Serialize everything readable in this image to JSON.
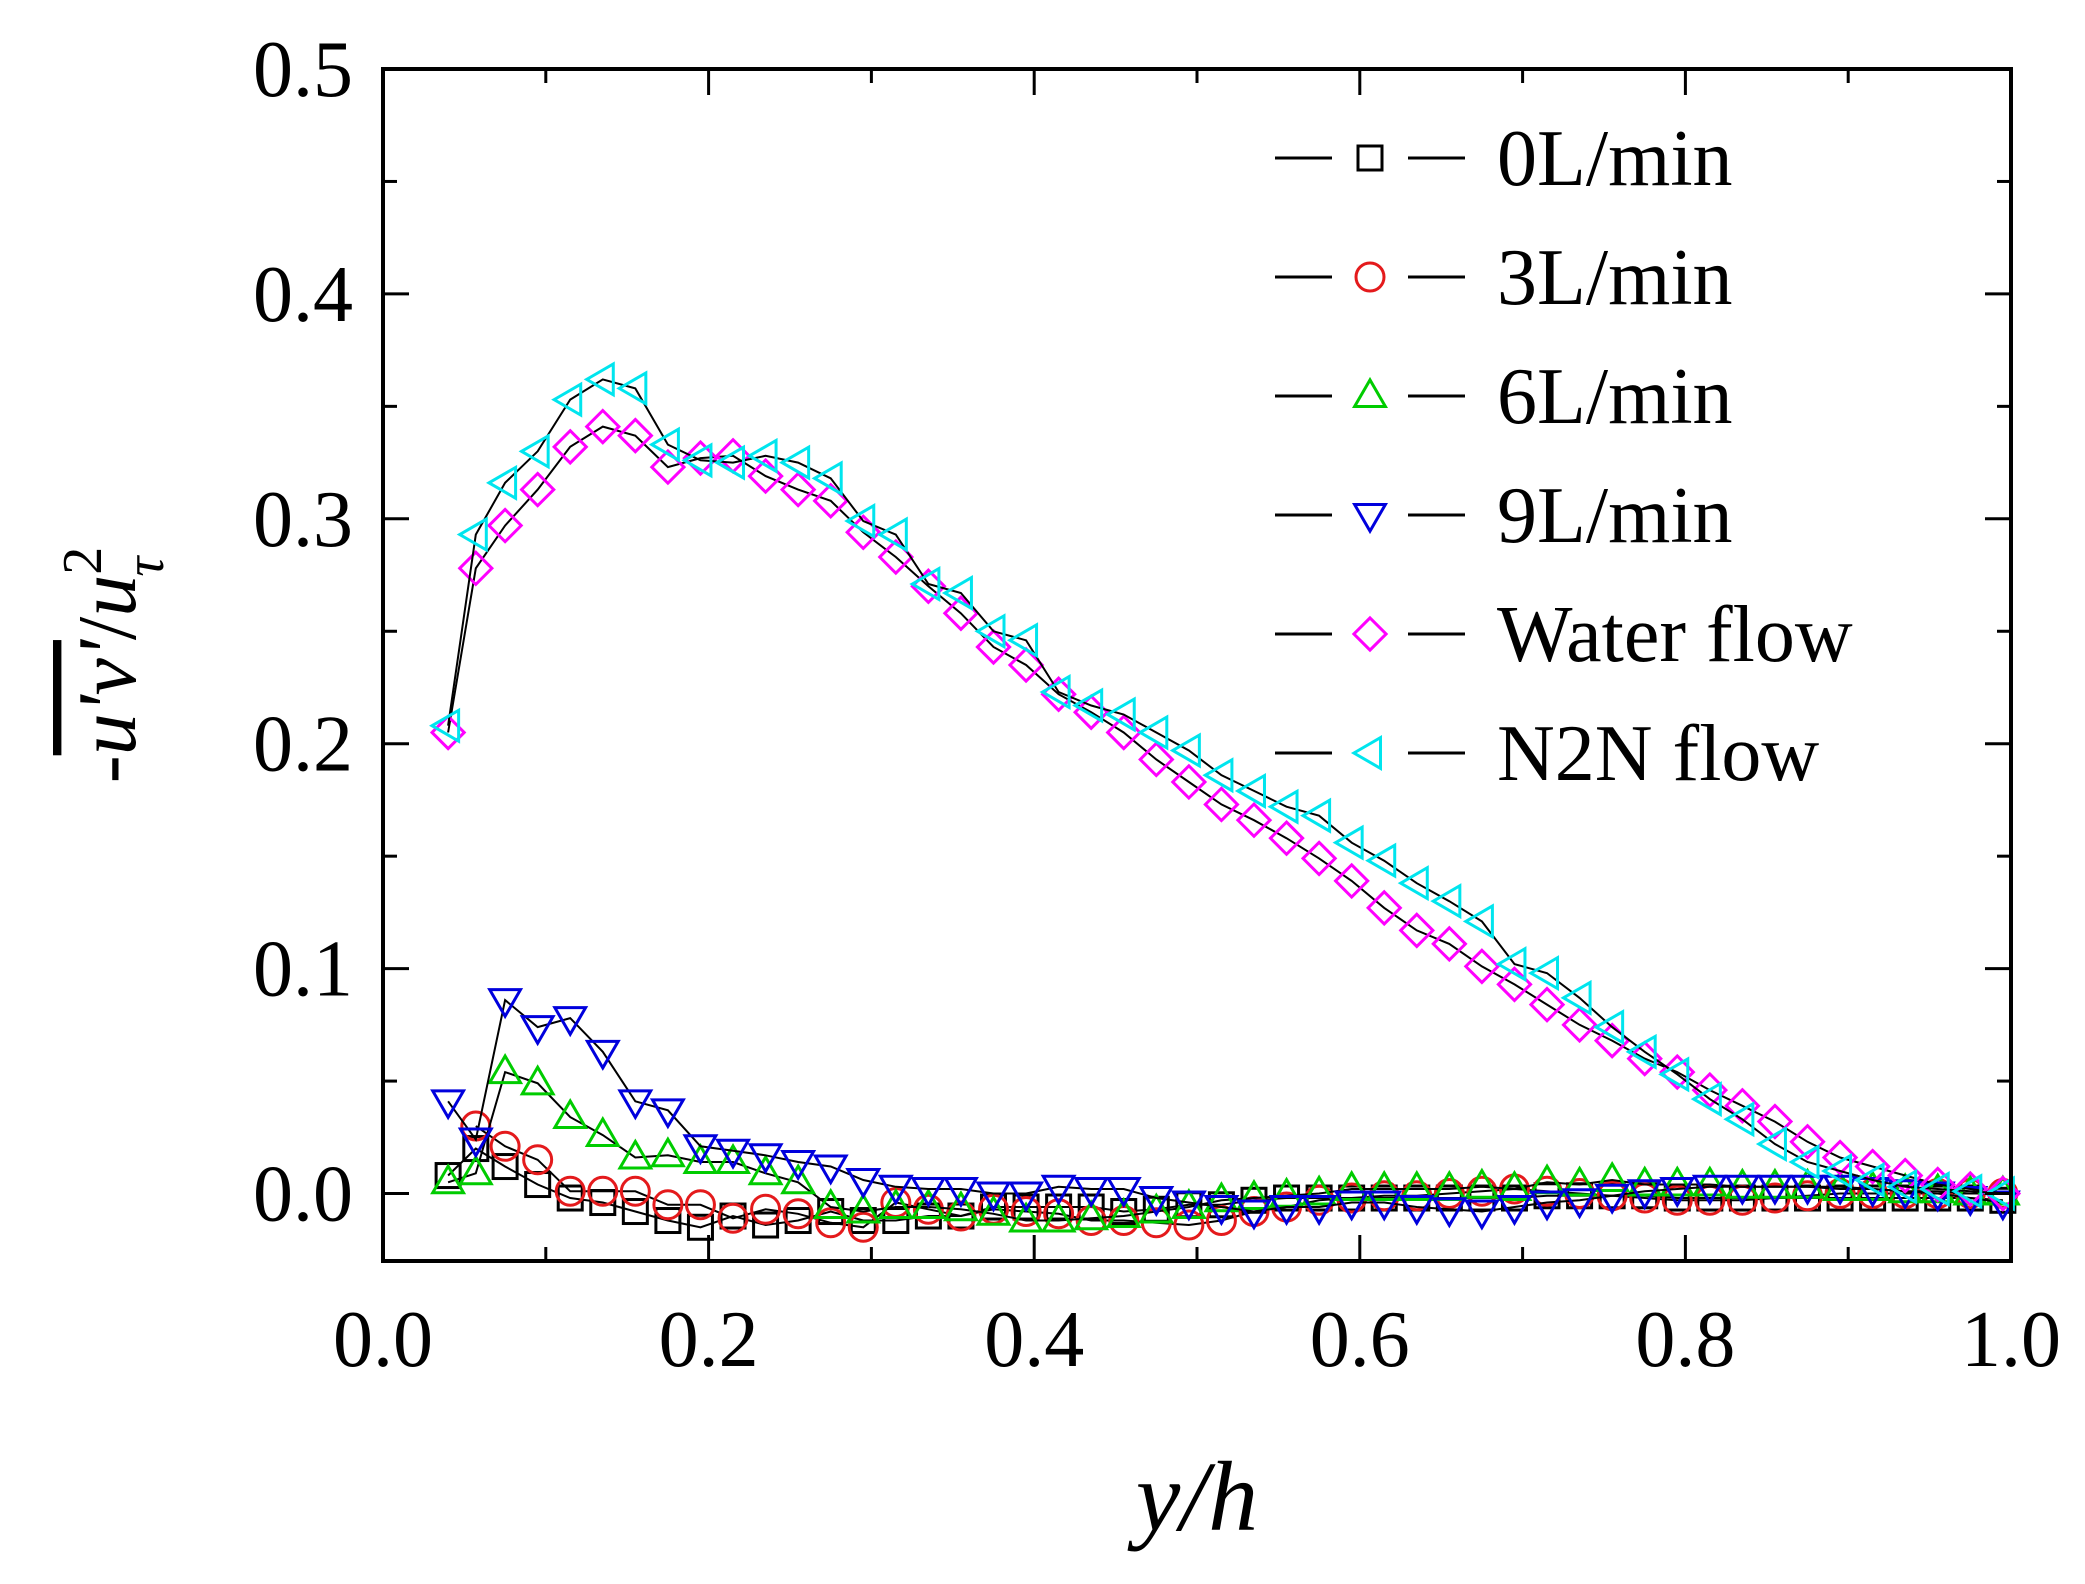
{
  "chart_data": {
    "type": "line",
    "xlabel": "y/h",
    "ylabel": {
      "prefix": "-",
      "overline": "u'v'",
      "slash": "/",
      "base": "u",
      "superscript": "2",
      "subscript": "τ"
    },
    "xlim": [
      0,
      1.0
    ],
    "ylim": [
      -0.03,
      0.5
    ],
    "xticks": [
      "0.0",
      "0.2",
      "0.4",
      "0.6",
      "0.8",
      "1.0"
    ],
    "yticks": [
      "0.0",
      "0.1",
      "0.2",
      "0.3",
      "0.4",
      "0.5"
    ],
    "legend_position": "top-right",
    "series": [
      {
        "name": "0L/min",
        "marker": "square",
        "color": "#000000",
        "x": [
          0.04,
          0.057,
          0.075,
          0.095,
          0.115,
          0.135,
          0.155,
          0.175,
          0.195,
          0.215,
          0.235,
          0.255,
          0.275,
          0.295,
          0.315,
          0.335,
          0.355,
          0.375,
          0.395,
          0.415,
          0.435,
          0.455,
          0.475,
          0.495,
          0.515,
          0.535,
          0.555,
          0.575,
          0.595,
          0.615,
          0.635,
          0.655,
          0.675,
          0.695,
          0.715,
          0.735,
          0.755,
          0.775,
          0.795,
          0.815,
          0.835,
          0.855,
          0.875,
          0.895,
          0.915,
          0.935,
          0.955,
          0.975,
          0.995
        ],
        "y": [
          0.008,
          0.02,
          0.012,
          0.004,
          -0.002,
          -0.004,
          -0.008,
          -0.012,
          -0.015,
          -0.01,
          -0.014,
          -0.012,
          -0.008,
          -0.012,
          -0.012,
          -0.01,
          -0.01,
          -0.006,
          -0.006,
          -0.006,
          -0.006,
          -0.008,
          -0.007,
          -0.005,
          -0.005,
          -0.003,
          -0.002,
          -0.002,
          -0.002,
          -0.002,
          -0.002,
          -0.002,
          -0.002,
          -0.002,
          -0.001,
          -0.001,
          -0.001,
          -0.001,
          -0.002,
          -0.002,
          -0.002,
          -0.002,
          -0.002,
          -0.002,
          -0.002,
          -0.002,
          -0.002,
          -0.002,
          -0.003
        ]
      },
      {
        "name": "3L/min",
        "marker": "circle",
        "color": "#e41a1c",
        "x": [
          0.057,
          0.075,
          0.095,
          0.115,
          0.135,
          0.155,
          0.175,
          0.195,
          0.215,
          0.235,
          0.255,
          0.275,
          0.295,
          0.315,
          0.335,
          0.355,
          0.375,
          0.395,
          0.415,
          0.435,
          0.455,
          0.475,
          0.495,
          0.515,
          0.535,
          0.555,
          0.575,
          0.595,
          0.615,
          0.635,
          0.655,
          0.675,
          0.695,
          0.715,
          0.735,
          0.755,
          0.775,
          0.795,
          0.815,
          0.835,
          0.855,
          0.875,
          0.895,
          0.915,
          0.935,
          0.955,
          0.975,
          0.995
        ],
        "y": [
          0.03,
          0.021,
          0.015,
          0.001,
          0.001,
          0.001,
          -0.005,
          -0.005,
          -0.011,
          -0.007,
          -0.009,
          -0.013,
          -0.015,
          -0.004,
          -0.007,
          -0.01,
          -0.007,
          -0.008,
          -0.009,
          -0.012,
          -0.012,
          -0.013,
          -0.014,
          -0.012,
          -0.008,
          -0.006,
          -0.003,
          -0.002,
          -0.001,
          -0.001,
          0.0,
          0.001,
          0.002,
          0.001,
          0.0,
          -0.001,
          -0.002,
          -0.003,
          -0.003,
          -0.003,
          -0.002,
          -0.001,
          0.0,
          0.0,
          0.0,
          0.0,
          0.0,
          0.0
        ]
      },
      {
        "name": "6L/min",
        "marker": "triangle-up",
        "color": "#00cc00",
        "x": [
          0.04,
          0.057,
          0.075,
          0.095,
          0.115,
          0.135,
          0.155,
          0.175,
          0.195,
          0.215,
          0.235,
          0.255,
          0.275,
          0.295,
          0.315,
          0.335,
          0.355,
          0.375,
          0.395,
          0.415,
          0.435,
          0.455,
          0.475,
          0.495,
          0.515,
          0.535,
          0.555,
          0.575,
          0.595,
          0.615,
          0.635,
          0.655,
          0.675,
          0.695,
          0.715,
          0.735,
          0.755,
          0.775,
          0.795,
          0.815,
          0.835,
          0.855,
          0.875,
          0.895,
          0.915,
          0.935,
          0.955,
          0.975,
          0.995
        ],
        "y": [
          0.005,
          0.009,
          0.054,
          0.049,
          0.034,
          0.026,
          0.016,
          0.017,
          0.014,
          0.014,
          0.009,
          0.005,
          -0.006,
          -0.008,
          -0.006,
          -0.006,
          -0.007,
          -0.009,
          -0.012,
          -0.012,
          -0.011,
          -0.01,
          -0.008,
          -0.006,
          -0.003,
          -0.002,
          -0.001,
          0.0,
          0.002,
          0.002,
          0.002,
          0.002,
          0.003,
          0.002,
          0.005,
          0.004,
          0.006,
          0.004,
          0.004,
          0.004,
          0.003,
          0.003,
          0.003,
          0.002,
          0.002,
          0.001,
          0.001,
          0.0,
          0.0
        ]
      },
      {
        "name": "9L/min",
        "marker": "triangle-down",
        "color": "#0000dd",
        "x": [
          0.04,
          0.057,
          0.075,
          0.095,
          0.115,
          0.135,
          0.155,
          0.175,
          0.195,
          0.215,
          0.235,
          0.255,
          0.275,
          0.295,
          0.315,
          0.335,
          0.355,
          0.375,
          0.395,
          0.415,
          0.435,
          0.455,
          0.475,
          0.495,
          0.515,
          0.535,
          0.555,
          0.575,
          0.595,
          0.615,
          0.635,
          0.655,
          0.675,
          0.695,
          0.715,
          0.735,
          0.755,
          0.775,
          0.795,
          0.815,
          0.835,
          0.855,
          0.875,
          0.895,
          0.915,
          0.935,
          0.955,
          0.975,
          0.995
        ],
        "y": [
          0.041,
          0.024,
          0.086,
          0.074,
          0.078,
          0.063,
          0.041,
          0.037,
          0.021,
          0.019,
          0.017,
          0.014,
          0.012,
          0.006,
          0.003,
          0.002,
          0.002,
          0.0,
          0.0,
          0.003,
          0.002,
          0.002,
          -0.002,
          -0.004,
          -0.006,
          -0.008,
          -0.006,
          -0.006,
          -0.004,
          -0.004,
          -0.006,
          -0.007,
          -0.008,
          -0.006,
          -0.004,
          -0.003,
          -0.001,
          0.001,
          0.002,
          0.003,
          0.003,
          0.003,
          0.003,
          0.003,
          0.002,
          0.001,
          0.0,
          -0.002,
          -0.004
        ]
      },
      {
        "name": "Water flow",
        "marker": "diamond",
        "color": "#ff00ff",
        "x": [
          0.04,
          0.057,
          0.075,
          0.095,
          0.115,
          0.135,
          0.155,
          0.175,
          0.195,
          0.215,
          0.235,
          0.255,
          0.275,
          0.295,
          0.315,
          0.335,
          0.355,
          0.375,
          0.395,
          0.415,
          0.435,
          0.455,
          0.475,
          0.495,
          0.515,
          0.535,
          0.555,
          0.575,
          0.595,
          0.615,
          0.635,
          0.655,
          0.675,
          0.695,
          0.715,
          0.735,
          0.755,
          0.775,
          0.795,
          0.815,
          0.835,
          0.855,
          0.875,
          0.895,
          0.915,
          0.935,
          0.955,
          0.975,
          0.995
        ],
        "y": [
          0.205,
          0.278,
          0.297,
          0.313,
          0.332,
          0.341,
          0.337,
          0.323,
          0.327,
          0.328,
          0.319,
          0.313,
          0.308,
          0.294,
          0.283,
          0.27,
          0.258,
          0.243,
          0.235,
          0.222,
          0.214,
          0.205,
          0.193,
          0.183,
          0.173,
          0.166,
          0.158,
          0.149,
          0.139,
          0.127,
          0.117,
          0.111,
          0.101,
          0.093,
          0.084,
          0.075,
          0.068,
          0.06,
          0.054,
          0.046,
          0.039,
          0.032,
          0.023,
          0.016,
          0.012,
          0.008,
          0.004,
          0.002,
          0.0
        ]
      },
      {
        "name": "N2N flow",
        "marker": "triangle-left",
        "color": "#00e5ee",
        "x": [
          0.04,
          0.057,
          0.075,
          0.095,
          0.115,
          0.135,
          0.155,
          0.175,
          0.195,
          0.215,
          0.235,
          0.255,
          0.275,
          0.295,
          0.315,
          0.335,
          0.355,
          0.375,
          0.395,
          0.415,
          0.435,
          0.455,
          0.475,
          0.495,
          0.515,
          0.535,
          0.555,
          0.575,
          0.595,
          0.615,
          0.635,
          0.655,
          0.675,
          0.695,
          0.715,
          0.735,
          0.755,
          0.775,
          0.795,
          0.815,
          0.835,
          0.855,
          0.875,
          0.895,
          0.915,
          0.935,
          0.955,
          0.975,
          0.995
        ],
        "y": [
          0.208,
          0.293,
          0.316,
          0.33,
          0.353,
          0.362,
          0.358,
          0.333,
          0.326,
          0.325,
          0.328,
          0.325,
          0.318,
          0.299,
          0.293,
          0.271,
          0.267,
          0.25,
          0.246,
          0.223,
          0.217,
          0.213,
          0.205,
          0.197,
          0.186,
          0.179,
          0.172,
          0.168,
          0.156,
          0.148,
          0.138,
          0.13,
          0.121,
          0.102,
          0.098,
          0.087,
          0.074,
          0.063,
          0.053,
          0.042,
          0.033,
          0.022,
          0.014,
          0.01,
          0.006,
          0.003,
          0.002,
          0.001,
          0.0
        ]
      }
    ]
  }
}
